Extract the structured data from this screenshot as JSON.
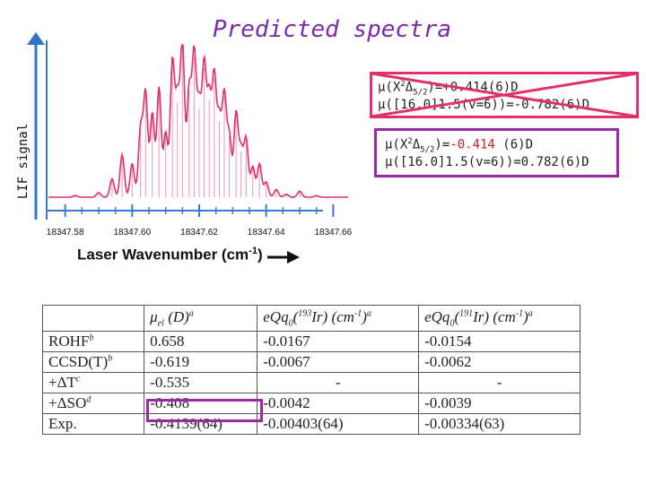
{
  "slide": {
    "title": "Predicted spectra"
  },
  "chart_data": {
    "type": "line",
    "title": "",
    "xlabel": "Laser Wavenumber (cm",
    "xlabel_sup": "-1",
    "xlabel_close": ")",
    "ylabel": "LIF signal",
    "xlim": [
      18347.575,
      18347.665
    ],
    "ylim": [
      0,
      1
    ],
    "x_ticks": [
      18347.58,
      18347.6,
      18347.62,
      18347.64,
      18347.66
    ],
    "tick_labels": [
      "18347.58",
      "18347.60",
      "18347.62",
      "18347.64",
      "18347.66"
    ],
    "series": [
      {
        "x": [
          18347.583,
          18347.59,
          18347.594,
          18347.597,
          18347.6,
          18347.6025,
          18347.604,
          18347.606,
          18347.608,
          18347.61,
          18347.612,
          18347.6135,
          18347.615,
          18347.617,
          18347.6185,
          18347.62,
          18347.6215,
          18347.623,
          18347.6245,
          18347.626,
          18347.6275,
          18347.629,
          18347.631,
          18347.6325,
          18347.634,
          18347.636,
          18347.638,
          18347.64,
          18347.643,
          18347.646,
          18347.65,
          18347.655
        ],
        "y": [
          0.01,
          0.03,
          0.12,
          0.28,
          0.22,
          0.45,
          0.68,
          0.55,
          0.72,
          0.42,
          0.88,
          0.62,
          1.0,
          0.7,
          0.92,
          0.58,
          0.85,
          0.64,
          0.78,
          0.5,
          0.66,
          0.4,
          0.55,
          0.3,
          0.38,
          0.2,
          0.22,
          0.1,
          0.05,
          0.02,
          0.04,
          0.01
        ]
      }
    ],
    "color": "#e0306a",
    "arrow_color": "#2e74c9"
  },
  "annotations": {
    "old_line1_pre": "μ(X",
    "old_line1_sup": "2",
    "old_line1_delta": "Δ",
    "old_line1_sub": "5/2",
    "old_line1_post": ")=+0.414(6)D",
    "old_line2": "μ([16.0]1.5(v=6))=-0.782(6)D",
    "new_line1_pre": "μ(X",
    "new_line1_sup": "2",
    "new_line1_delta": "Δ",
    "new_line1_sub": "5/2",
    "new_line1_eq": ")=",
    "new_line1_val": "-0.414",
    "new_line1_post": " (6)D",
    "new_line2": "μ([16.0]1.5(v=6))=0.782(6)D",
    "cross_color": "#e0306a",
    "box_color": "#9b2ba3"
  },
  "table": {
    "headers": [
      {
        "main": "",
        "sup": ""
      },
      {
        "main": "μel (D)",
        "sup": "a"
      },
      {
        "main": "eQq0(193Ir) (cm-1)",
        "sup": "a"
      },
      {
        "main": "eQq0(191Ir) (cm-1)",
        "sup": "a"
      }
    ],
    "rows": [
      {
        "method": "ROHF",
        "sup": "b",
        "mu": "0.658",
        "eqq193": "-0.0167",
        "eqq191": "-0.0154"
      },
      {
        "method": "CCSD(T)",
        "sup": "b",
        "mu": "-0.619",
        "eqq193": "-0.0067",
        "eqq191": "-0.0062"
      },
      {
        "method": "+ΔT",
        "sup": "c",
        "mu": "-0.535",
        "eqq193": "-",
        "eqq191": "-"
      },
      {
        "method": "+ΔSO",
        "sup": "d",
        "mu": "-0.408",
        "eqq193": "-0.0042",
        "eqq191": "-0.0039"
      },
      {
        "method": "Exp.",
        "sup": "",
        "mu": "-0.4139(64)",
        "eqq193": "-0.00403(64)",
        "eqq191": "-0.00334(63)"
      }
    ]
  }
}
